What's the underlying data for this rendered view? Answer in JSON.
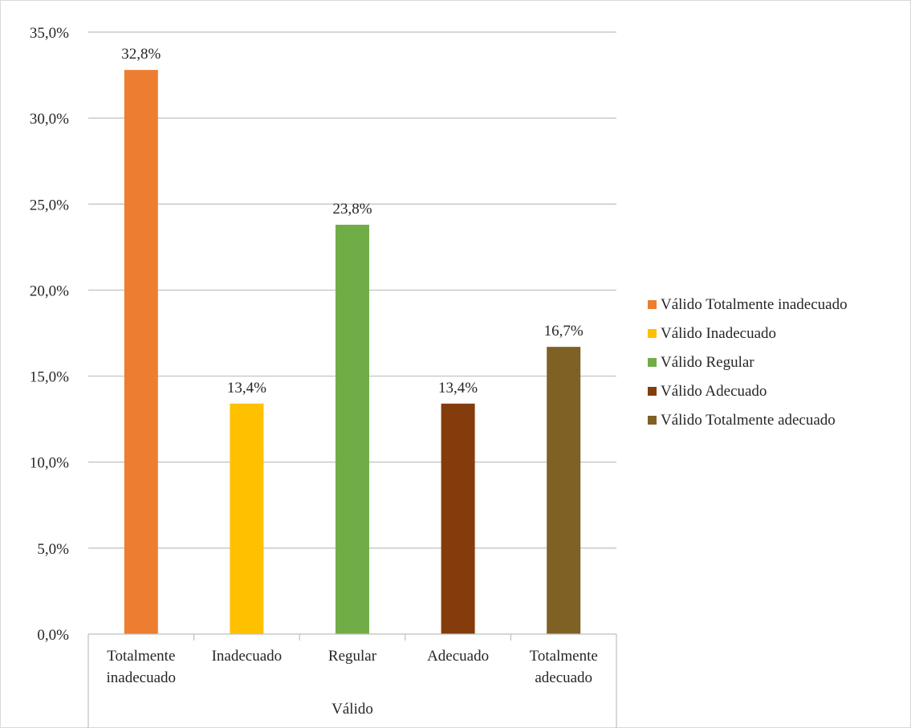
{
  "chart_data": {
    "type": "bar",
    "group_label": "Válido",
    "categories": [
      "Totalmente inadecuado",
      "Inadecuado",
      "Regular",
      "Adecuado",
      "Totalmente adecuado"
    ],
    "category_lines": [
      [
        "Totalmente",
        "inadecuado"
      ],
      [
        "Inadecuado"
      ],
      [
        "Regular"
      ],
      [
        "Adecuado"
      ],
      [
        "Totalmente",
        "adecuado"
      ]
    ],
    "values": [
      32.8,
      13.4,
      23.8,
      13.4,
      16.7
    ],
    "data_labels": [
      "32,8%",
      "13,4%",
      "23,8%",
      "13,4%",
      "16,7%"
    ],
    "colors": [
      "#ed7d31",
      "#ffc000",
      "#70ad47",
      "#843c0c",
      "#7f6025"
    ],
    "legend": [
      "Válido Totalmente inadecuado",
      "Válido Inadecuado",
      "Válido Regular",
      "Válido Adecuado",
      "Válido Totalmente adecuado"
    ],
    "legend_position": "right",
    "ylim": [
      0,
      35
    ],
    "yticks": [
      0,
      5,
      10,
      15,
      20,
      25,
      30,
      35
    ],
    "ytick_labels": [
      "0,0%",
      "5,0%",
      "10,0%",
      "15,0%",
      "20,0%",
      "25,0%",
      "30,0%",
      "35,0%"
    ],
    "grid": true,
    "title": "",
    "xlabel": "Válido",
    "ylabel": ""
  }
}
